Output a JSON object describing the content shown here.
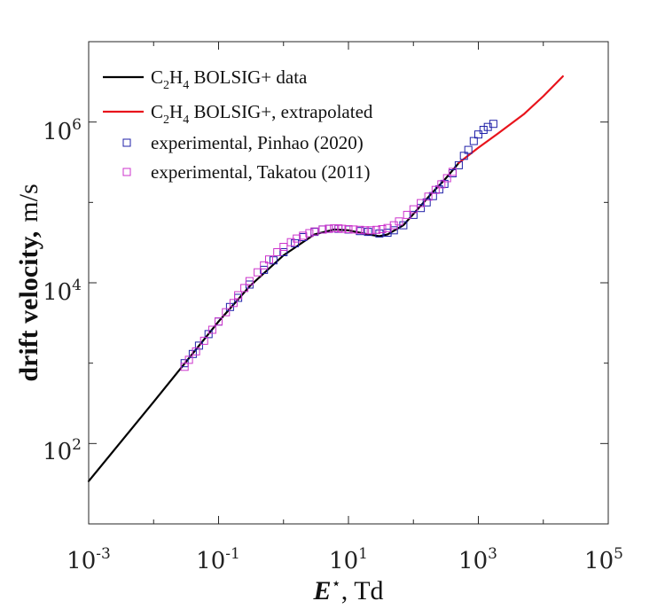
{
  "chart_data": {
    "type": "scatter",
    "title": "",
    "xlabel": {
      "var": "E",
      "sup": "⋆",
      "unit": ",  Td"
    },
    "ylabel": {
      "main": "drift velocity,",
      "unit": "m/s"
    },
    "xscale": "log",
    "yscale": "log",
    "xlim": [
      0.001,
      100000
    ],
    "ylim": [
      10,
      10000000
    ],
    "grid": false,
    "legend_position": "top-left",
    "x_ticks": [
      {
        "base": "10",
        "exp": "-3"
      },
      {
        "base": "10",
        "exp": "-1"
      },
      {
        "base": "10",
        "exp": "1"
      },
      {
        "base": "10",
        "exp": "3"
      },
      {
        "base": "10",
        "exp": "5"
      }
    ],
    "y_ticks": [
      {
        "base": "10",
        "exp": "2"
      },
      {
        "base": "10",
        "exp": "4"
      },
      {
        "base": "10",
        "exp": "6"
      }
    ],
    "series": [
      {
        "name": "C2H4 BOLSIG+ data",
        "legend_parts": [
          "C",
          "2",
          "H",
          "4",
          " BOLSIG+ data"
        ],
        "kind": "line",
        "color": "#000000",
        "x": [
          0.001,
          0.01,
          0.1,
          0.3,
          1,
          3,
          6,
          10,
          20,
          30,
          40,
          70,
          100,
          200,
          300,
          500
        ],
        "y": [
          34,
          330,
          3300,
          9000,
          22000,
          40000,
          46000,
          45000,
          40000,
          38000,
          40000,
          52000,
          72000,
          135000,
          190000,
          310000
        ]
      },
      {
        "name": "C2H4 BOLSIG+, extrapolated",
        "legend_parts": [
          "C",
          "2",
          "H",
          "4",
          " BOLSIG+, extrapolated"
        ],
        "kind": "line",
        "color": "#e8141c",
        "x": [
          500,
          1000,
          2000,
          5000,
          10000,
          20000
        ],
        "y": [
          310000,
          480000,
          720000,
          1250000,
          2100000,
          3700000
        ]
      },
      {
        "name": "experimental, Pinhao (2020)",
        "legend_parts": [
          "experimental, Pinhao (2020)"
        ],
        "kind": "markers",
        "color": "#2020a8",
        "x": [
          0.03,
          0.04,
          0.05,
          0.07,
          0.1,
          0.15,
          0.2,
          0.3,
          0.5,
          0.7,
          1,
          1.5,
          2,
          3,
          4,
          5,
          7,
          10,
          15,
          20,
          30,
          40,
          50,
          70,
          100,
          130,
          160,
          200,
          250,
          300,
          400,
          500,
          600,
          700,
          850,
          1000,
          1200,
          1400,
          1700
        ],
        "y": [
          1000,
          1300,
          1650,
          2300,
          3300,
          5000,
          6500,
          9500,
          14500,
          19000,
          24000,
          31000,
          37000,
          43000,
          46000,
          47000,
          47000,
          46000,
          44000,
          43000,
          41000,
          42000,
          45000,
          52000,
          70000,
          85000,
          100000,
          120000,
          145000,
          170000,
          230000,
          290000,
          380000,
          450000,
          580000,
          700000,
          800000,
          870000,
          950000
        ]
      },
      {
        "name": "experimental, Takatou (2011)",
        "legend_parts": [
          "experimental, Takatou (2011)"
        ],
        "kind": "markers",
        "color": "#cc33cc",
        "x": [
          0.03,
          0.035,
          0.045,
          0.06,
          0.08,
          0.1,
          0.13,
          0.17,
          0.2,
          0.25,
          0.3,
          0.4,
          0.5,
          0.6,
          0.8,
          1,
          1.3,
          1.6,
          2,
          2.5,
          3,
          4,
          5,
          6,
          7,
          8,
          10,
          12,
          15,
          18,
          22,
          27,
          33,
          40,
          50,
          60,
          80,
          100,
          130,
          170,
          220,
          270,
          330,
          400
        ],
        "y": [
          900,
          1100,
          1400,
          1900,
          2600,
          3300,
          4300,
          5600,
          7000,
          8600,
          10500,
          13500,
          16500,
          19500,
          24000,
          28000,
          32000,
          35500,
          38500,
          41500,
          43500,
          46000,
          47000,
          47500,
          47500,
          47000,
          46500,
          46000,
          45500,
          45000,
          45000,
          45500,
          46500,
          48000,
          52000,
          58000,
          70000,
          82000,
          98000,
          118000,
          143000,
          168000,
          200000,
          240000
        ]
      }
    ]
  }
}
